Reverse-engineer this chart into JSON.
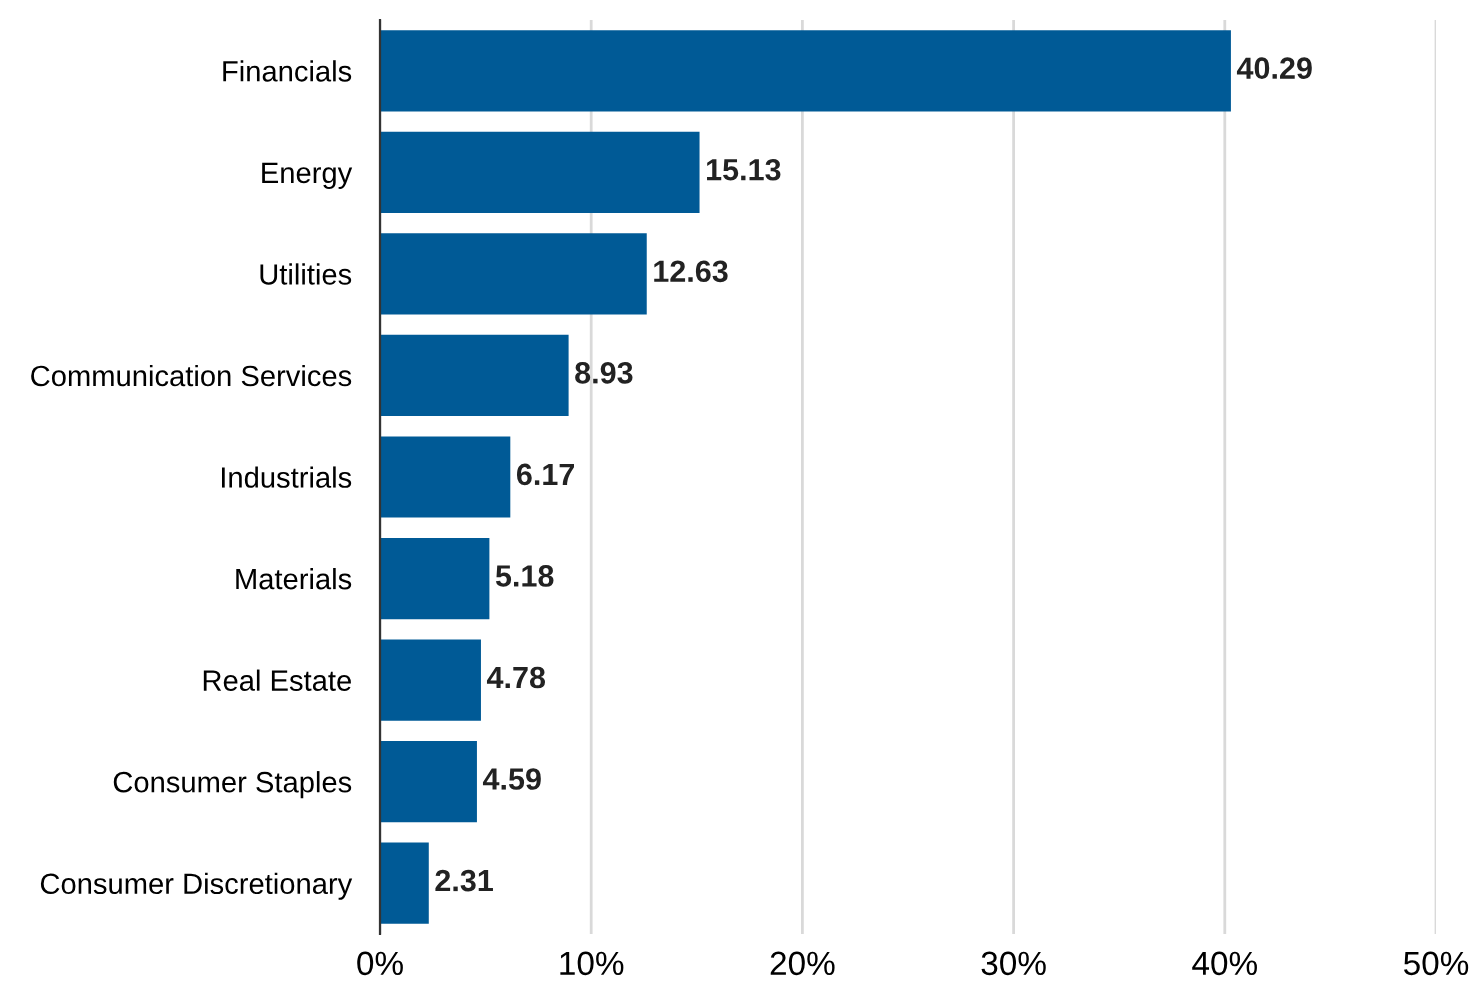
{
  "chart_data": {
    "type": "bar",
    "orientation": "horizontal",
    "categories": [
      "Financials",
      "Energy",
      "Utilities",
      "Communication Services",
      "Industrials",
      "Materials",
      "Real Estate",
      "Consumer Staples",
      "Consumer Discretionary"
    ],
    "values": [
      40.29,
      15.13,
      12.63,
      8.93,
      6.17,
      5.18,
      4.78,
      4.59,
      2.31
    ],
    "color": "#005a96",
    "xlim": [
      0,
      50
    ],
    "xticks": [
      {
        "value": 0,
        "label": "0%"
      },
      {
        "value": 10,
        "label": "10%"
      },
      {
        "value": 20,
        "label": "20%"
      },
      {
        "value": 30,
        "label": "30%"
      },
      {
        "value": 40,
        "label": "40%"
      },
      {
        "value": 50,
        "label": "50%"
      }
    ],
    "grid": "x",
    "data_labels": true,
    "legend": false
  }
}
